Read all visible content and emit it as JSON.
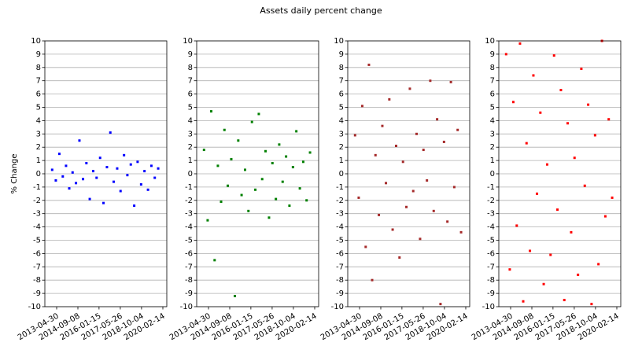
{
  "chart_data": [
    {
      "type": "scatter",
      "title": "Assets daily percent change",
      "ylabel": "% Change",
      "color": "#0000ff",
      "grid": true,
      "xlim": [
        "2012-07-28",
        "2020-05-16"
      ],
      "ylim": [
        -10,
        10
      ],
      "xticks": [
        "2013-04-30",
        "2014-09-08",
        "2016-01-15",
        "2017-05-26",
        "2018-10-04",
        "2020-02-14"
      ],
      "yticks": [
        -10,
        -9,
        -8,
        -7,
        -6,
        -5,
        -4,
        -3,
        -2,
        -1,
        0,
        1,
        2,
        3,
        4,
        5,
        6,
        7,
        8,
        9,
        10
      ],
      "x": [
        "2013-01-15",
        "2013-04-10",
        "2013-07-02",
        "2013-09-20",
        "2013-12-05",
        "2014-02-18",
        "2014-05-07",
        "2014-07-25",
        "2014-10-14",
        "2015-01-06",
        "2015-03-26",
        "2015-06-12",
        "2015-09-01",
        "2015-11-19",
        "2016-02-09",
        "2016-04-28",
        "2016-07-18",
        "2016-10-05",
        "2016-12-22",
        "2017-03-14",
        "2017-06-01",
        "2017-08-21",
        "2017-11-07",
        "2018-01-26",
        "2018-04-16",
        "2018-07-04",
        "2018-09-24",
        "2018-12-12",
        "2019-03-04",
        "2019-05-22",
        "2019-08-09",
        "2019-10-28"
      ],
      "values": [
        0.3,
        -0.5,
        1.5,
        -0.2,
        0.6,
        -1.1,
        0.1,
        -0.7,
        2.5,
        -0.4,
        0.8,
        -1.9,
        0.2,
        -0.3,
        1.2,
        -2.2,
        0.5,
        3.1,
        -0.6,
        0.4,
        -1.3,
        1.4,
        -0.1,
        0.7,
        -2.4,
        0.9,
        -0.8,
        0.2,
        -1.2,
        0.6,
        -0.3,
        0.4
      ]
    },
    {
      "type": "scatter",
      "color": "#008000",
      "grid": true,
      "xlim": [
        "2012-07-28",
        "2020-05-16"
      ],
      "ylim": [
        -10,
        10
      ],
      "xticks": [
        "2013-04-30",
        "2014-09-08",
        "2016-01-15",
        "2017-05-26",
        "2018-10-04",
        "2020-02-14"
      ],
      "yticks": [
        -10,
        -9,
        -8,
        -7,
        -6,
        -5,
        -4,
        -3,
        -2,
        -1,
        0,
        1,
        2,
        3,
        4,
        5,
        6,
        7,
        8,
        9,
        10
      ],
      "x": [
        "2013-01-15",
        "2013-04-10",
        "2013-07-02",
        "2013-09-20",
        "2013-12-05",
        "2014-02-18",
        "2014-05-07",
        "2014-07-25",
        "2014-10-14",
        "2015-01-06",
        "2015-03-26",
        "2015-06-12",
        "2015-09-01",
        "2015-11-19",
        "2016-02-09",
        "2016-04-28",
        "2016-07-18",
        "2016-10-05",
        "2016-12-22",
        "2017-03-14",
        "2017-06-01",
        "2017-08-21",
        "2017-11-07",
        "2018-01-26",
        "2018-04-16",
        "2018-07-04",
        "2018-09-24",
        "2018-12-12",
        "2019-03-04",
        "2019-05-22",
        "2019-08-09",
        "2019-10-28"
      ],
      "values": [
        1.8,
        -3.5,
        4.7,
        -6.5,
        0.6,
        -2.1,
        3.3,
        -0.9,
        1.1,
        -9.2,
        2.5,
        -1.6,
        0.3,
        -2.8,
        3.9,
        -1.2,
        4.5,
        -0.4,
        1.7,
        -3.3,
        0.8,
        -1.9,
        2.2,
        -0.6,
        1.3,
        -2.4,
        0.5,
        3.2,
        -1.1,
        0.9,
        -2.0,
        1.6
      ]
    },
    {
      "type": "scatter",
      "color": "#a52a2a",
      "grid": true,
      "xlim": [
        "2012-07-28",
        "2020-05-16"
      ],
      "ylim": [
        -10,
        10
      ],
      "xticks": [
        "2013-04-30",
        "2014-09-08",
        "2016-01-15",
        "2017-05-26",
        "2018-10-04",
        "2020-02-14"
      ],
      "yticks": [
        -10,
        -9,
        -8,
        -7,
        -6,
        -5,
        -4,
        -3,
        -2,
        -1,
        0,
        1,
        2,
        3,
        4,
        5,
        6,
        7,
        8,
        9,
        10
      ],
      "x": [
        "2013-01-15",
        "2013-04-10",
        "2013-07-02",
        "2013-09-20",
        "2013-12-05",
        "2014-02-18",
        "2014-05-07",
        "2014-07-25",
        "2014-10-14",
        "2015-01-06",
        "2015-03-26",
        "2015-06-12",
        "2015-09-01",
        "2015-11-19",
        "2016-02-09",
        "2016-04-28",
        "2016-07-18",
        "2016-10-05",
        "2016-12-22",
        "2017-03-14",
        "2017-06-01",
        "2017-08-21",
        "2017-11-07",
        "2018-01-26",
        "2018-04-16",
        "2018-07-04",
        "2018-09-24",
        "2018-12-12",
        "2019-03-04",
        "2019-05-22",
        "2019-08-09",
        "2019-10-28"
      ],
      "values": [
        2.9,
        -1.8,
        5.1,
        -5.5,
        8.2,
        -8.0,
        1.4,
        -3.1,
        3.6,
        -0.7,
        5.6,
        -4.2,
        2.1,
        -6.3,
        0.9,
        -2.5,
        6.4,
        -1.3,
        3.0,
        -4.9,
        1.8,
        -0.5,
        7.0,
        -2.8,
        4.1,
        -9.8,
        2.4,
        -3.6,
        6.9,
        -1.0,
        3.3,
        -4.4
      ]
    },
    {
      "type": "scatter",
      "color": "#ff0000",
      "grid": true,
      "xlim": [
        "2012-07-28",
        "2020-05-16"
      ],
      "ylim": [
        -10,
        10
      ],
      "xticks": [
        "2013-04-30",
        "2014-09-08",
        "2016-01-15",
        "2017-05-26",
        "2018-10-04",
        "2020-02-14"
      ],
      "yticks": [
        -10,
        -9,
        -8,
        -7,
        -6,
        -5,
        -4,
        -3,
        -2,
        -1,
        0,
        1,
        2,
        3,
        4,
        5,
        6,
        7,
        8,
        9,
        10
      ],
      "x": [
        "2013-01-15",
        "2013-04-10",
        "2013-07-02",
        "2013-09-20",
        "2013-12-05",
        "2014-02-18",
        "2014-05-07",
        "2014-07-25",
        "2014-10-14",
        "2015-01-06",
        "2015-03-26",
        "2015-06-12",
        "2015-09-01",
        "2015-11-19",
        "2016-02-09",
        "2016-04-28",
        "2016-07-18",
        "2016-10-05",
        "2016-12-22",
        "2017-03-14",
        "2017-06-01",
        "2017-08-21",
        "2017-11-07",
        "2018-01-26",
        "2018-04-16",
        "2018-07-04",
        "2018-09-24",
        "2018-12-12",
        "2019-03-04",
        "2019-05-22",
        "2019-08-09",
        "2019-10-28"
      ],
      "values": [
        9.0,
        -7.2,
        5.4,
        -3.9,
        9.8,
        -9.6,
        2.3,
        -5.8,
        7.4,
        -1.5,
        4.6,
        -8.3,
        0.7,
        -6.1,
        8.9,
        -2.7,
        6.3,
        -9.5,
        3.8,
        -4.4,
        1.2,
        -7.6,
        7.9,
        -0.9,
        5.2,
        -9.8,
        2.9,
        -6.8,
        10.0,
        -3.2,
        4.1,
        -1.8
      ]
    }
  ]
}
